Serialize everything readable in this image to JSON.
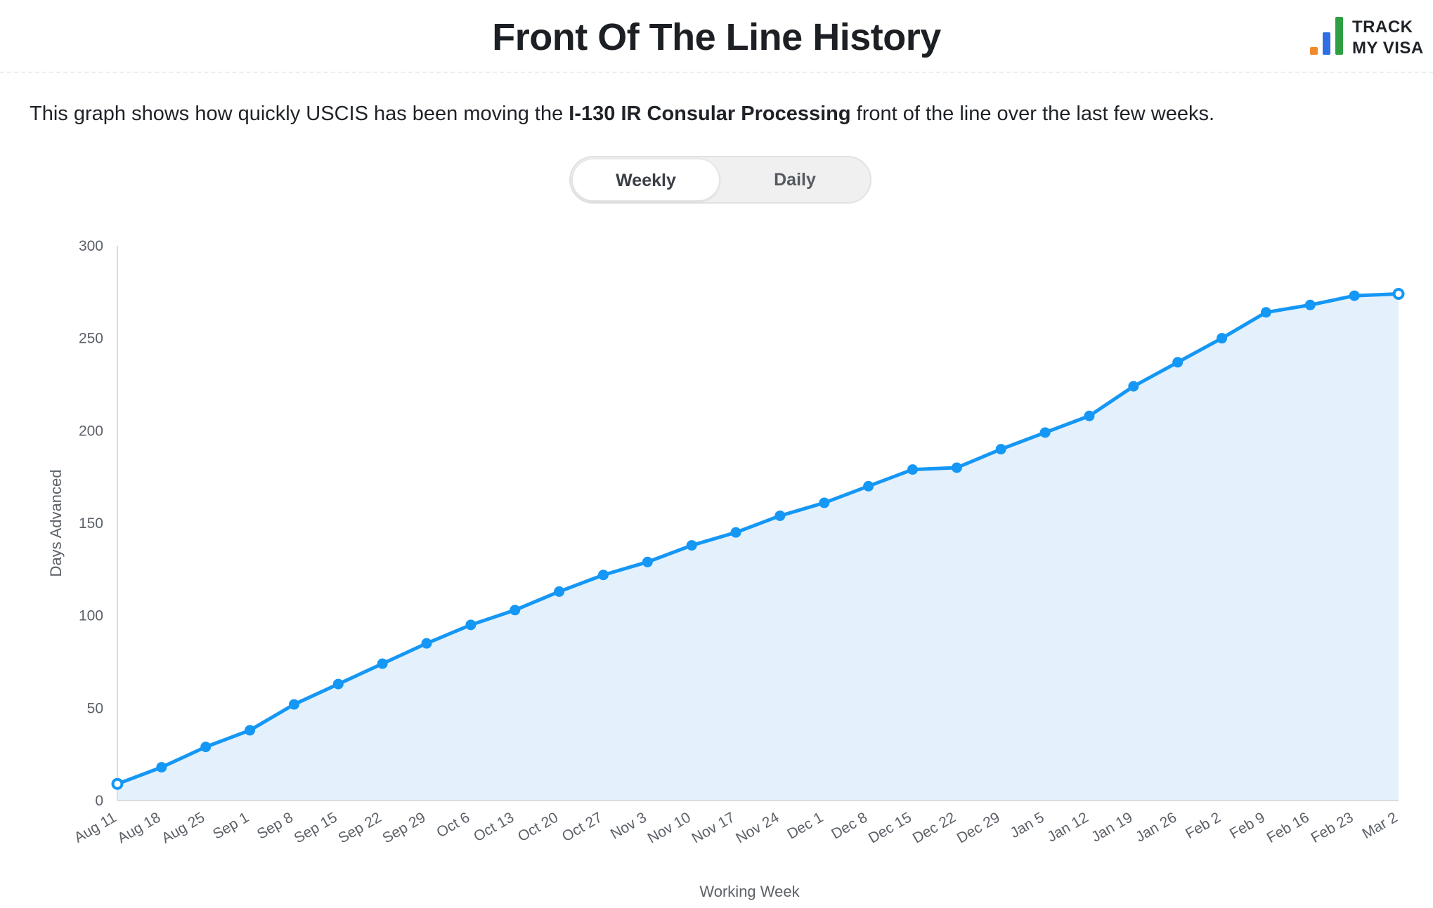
{
  "header": {
    "title": "Front Of The Line History",
    "logo": {
      "line1": "TRACK",
      "line2": "MY VISA",
      "colors": [
        "#f08a2c",
        "#2f6fe3",
        "#2ea043"
      ]
    }
  },
  "description": {
    "prefix": "This graph shows how quickly USCIS has been moving the ",
    "emphasis": "I-130 IR Consular Processing",
    "suffix": " front of the line over the last few weeks."
  },
  "toggle": {
    "options": [
      "Weekly",
      "Daily"
    ],
    "selected": "Weekly"
  },
  "chart_data": {
    "type": "area",
    "xlabel": "Working Week",
    "ylabel": "Days Advanced",
    "ylim": [
      0,
      300
    ],
    "yticks": [
      0,
      50,
      100,
      150,
      200,
      250,
      300
    ],
    "grid": false,
    "line_color": "#1597f5",
    "fill_color": "#e4f1fd",
    "categories": [
      "Aug 11",
      "Aug 18",
      "Aug 25",
      "Sep 1",
      "Sep 8",
      "Sep 15",
      "Sep 22",
      "Sep 29",
      "Oct 6",
      "Oct 13",
      "Oct 20",
      "Oct 27",
      "Nov 3",
      "Nov 10",
      "Nov 17",
      "Nov 24",
      "Dec 1",
      "Dec 8",
      "Dec 15",
      "Dec 22",
      "Dec 29",
      "Jan 5",
      "Jan 12",
      "Jan 19",
      "Jan 26",
      "Feb 2",
      "Feb 9",
      "Feb 16",
      "Feb 23",
      "Mar 2"
    ],
    "values": [
      9,
      18,
      29,
      38,
      52,
      63,
      74,
      85,
      95,
      103,
      113,
      122,
      129,
      138,
      145,
      154,
      161,
      170,
      179,
      180,
      190,
      199,
      208,
      224,
      237,
      250,
      264,
      268,
      273,
      274
    ]
  }
}
